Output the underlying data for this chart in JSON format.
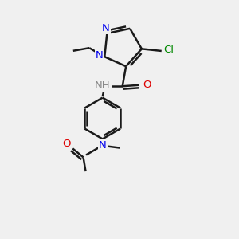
{
  "bg_color": "#f0f0f0",
  "bond_color": "#1a1a1a",
  "n_color": "#0000ee",
  "o_color": "#dd0000",
  "cl_color": "#008800",
  "h_color": "#888888",
  "lw": 1.8,
  "fs": 9.5,
  "figsize": [
    3.0,
    3.0
  ],
  "dpi": 100,
  "xlim": [
    0,
    10
  ],
  "ylim": [
    0,
    10
  ]
}
